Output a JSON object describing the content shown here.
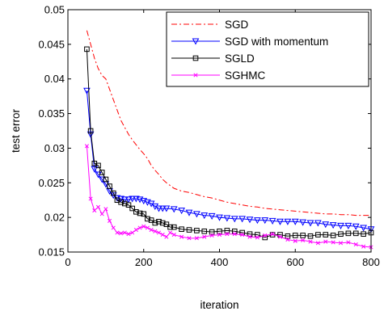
{
  "chart_data": {
    "type": "line",
    "title": "",
    "xlabel": "iteration",
    "ylabel": "test error",
    "xlim": [
      0,
      800
    ],
    "ylim": [
      0.015,
      0.05
    ],
    "xticks": [
      0,
      200,
      400,
      600,
      800
    ],
    "yticks": [
      0.015,
      0.02,
      0.025,
      0.03,
      0.035,
      0.04,
      0.045,
      0.05
    ],
    "xtick_labels": [
      "0",
      "200",
      "400",
      "600",
      "800"
    ],
    "ytick_labels": [
      "0.015",
      "0.02",
      "0.025",
      "0.03",
      "0.035",
      "0.04",
      "0.045",
      "0.05"
    ],
    "grid": false,
    "legend_position": "top-right",
    "series": [
      {
        "name": "SGD",
        "color": "#ff0000",
        "line_style": "dash-dot",
        "marker": "none",
        "x": [
          50,
          60,
          70,
          80,
          90,
          100,
          110,
          120,
          130,
          140,
          150,
          160,
          170,
          180,
          190,
          200,
          210,
          220,
          230,
          240,
          250,
          260,
          270,
          280,
          290,
          300,
          320,
          340,
          360,
          380,
          400,
          420,
          440,
          460,
          480,
          500,
          520,
          540,
          560,
          580,
          600,
          620,
          640,
          660,
          680,
          700,
          720,
          740,
          760,
          780,
          800
        ],
        "y": [
          0.047,
          0.045,
          0.043,
          0.0415,
          0.0405,
          0.04,
          0.0385,
          0.037,
          0.0355,
          0.034,
          0.033,
          0.032,
          0.0312,
          0.0305,
          0.0298,
          0.0292,
          0.0285,
          0.0275,
          0.0268,
          0.0262,
          0.0255,
          0.025,
          0.0246,
          0.0242,
          0.024,
          0.0238,
          0.0236,
          0.0233,
          0.023,
          0.0228,
          0.0225,
          0.0222,
          0.022,
          0.0218,
          0.0216,
          0.0215,
          0.0213,
          0.0212,
          0.0211,
          0.021,
          0.0209,
          0.0208,
          0.0207,
          0.0206,
          0.0205,
          0.0205,
          0.0204,
          0.0204,
          0.0203,
          0.0203,
          0.0203
        ]
      },
      {
        "name": "SGD with momentum",
        "color": "#0000ff",
        "line_style": "solid",
        "marker": "triangle-down",
        "x": [
          50,
          60,
          70,
          80,
          90,
          100,
          110,
          120,
          130,
          140,
          150,
          160,
          170,
          180,
          190,
          200,
          210,
          220,
          230,
          240,
          250,
          260,
          280,
          300,
          320,
          340,
          360,
          380,
          400,
          420,
          440,
          460,
          480,
          500,
          520,
          540,
          560,
          580,
          600,
          620,
          640,
          660,
          680,
          700,
          720,
          740,
          760,
          780,
          800
        ],
        "y": [
          0.0383,
          0.032,
          0.027,
          0.0262,
          0.0255,
          0.0248,
          0.0238,
          0.0232,
          0.0228,
          0.0227,
          0.0226,
          0.0226,
          0.0227,
          0.0227,
          0.0226,
          0.0224,
          0.0222,
          0.022,
          0.0216,
          0.0213,
          0.0213,
          0.0213,
          0.0212,
          0.021,
          0.0207,
          0.0205,
          0.0203,
          0.0202,
          0.02,
          0.0199,
          0.0198,
          0.0198,
          0.0197,
          0.0196,
          0.0196,
          0.0195,
          0.0194,
          0.0194,
          0.0194,
          0.0193,
          0.0192,
          0.0192,
          0.019,
          0.0189,
          0.0188,
          0.0188,
          0.0187,
          0.0185,
          0.0183
        ]
      },
      {
        "name": "SGLD",
        "color": "#000000",
        "line_style": "solid",
        "marker": "square",
        "x": [
          50,
          60,
          70,
          80,
          90,
          100,
          110,
          120,
          130,
          140,
          150,
          160,
          170,
          180,
          190,
          200,
          210,
          220,
          230,
          240,
          250,
          260,
          270,
          280,
          300,
          320,
          340,
          360,
          380,
          400,
          420,
          440,
          460,
          480,
          500,
          520,
          540,
          560,
          580,
          600,
          620,
          640,
          660,
          680,
          700,
          720,
          740,
          760,
          780,
          800
        ],
        "y": [
          0.0443,
          0.0325,
          0.0278,
          0.0275,
          0.0265,
          0.0255,
          0.0245,
          0.0235,
          0.0225,
          0.0222,
          0.022,
          0.0218,
          0.0213,
          0.0208,
          0.0206,
          0.0205,
          0.0198,
          0.0196,
          0.0192,
          0.0194,
          0.0192,
          0.019,
          0.0186,
          0.0186,
          0.0183,
          0.0182,
          0.0181,
          0.018,
          0.0179,
          0.018,
          0.0181,
          0.018,
          0.0178,
          0.0176,
          0.0175,
          0.0171,
          0.0175,
          0.0175,
          0.0173,
          0.0174,
          0.0174,
          0.0173,
          0.0175,
          0.0175,
          0.0174,
          0.0176,
          0.0177,
          0.0177,
          0.0176,
          0.0178
        ]
      },
      {
        "name": "SGHMC",
        "color": "#ff00ff",
        "line_style": "solid",
        "marker": "x",
        "x": [
          50,
          60,
          70,
          80,
          90,
          100,
          110,
          120,
          130,
          140,
          150,
          160,
          170,
          180,
          190,
          200,
          210,
          220,
          230,
          240,
          250,
          260,
          270,
          280,
          300,
          320,
          340,
          360,
          380,
          400,
          420,
          440,
          460,
          480,
          500,
          520,
          540,
          560,
          580,
          600,
          620,
          640,
          660,
          680,
          700,
          720,
          740,
          760,
          780,
          800
        ],
        "y": [
          0.0303,
          0.0227,
          0.021,
          0.0215,
          0.0205,
          0.0212,
          0.0195,
          0.0185,
          0.0178,
          0.0177,
          0.0178,
          0.0176,
          0.0178,
          0.0182,
          0.0185,
          0.0187,
          0.0185,
          0.0182,
          0.018,
          0.0178,
          0.0175,
          0.0172,
          0.0178,
          0.0175,
          0.0172,
          0.017,
          0.017,
          0.0172,
          0.0174,
          0.0175,
          0.0176,
          0.0176,
          0.0175,
          0.0172,
          0.0171,
          0.0174,
          0.0176,
          0.0172,
          0.0168,
          0.0166,
          0.0167,
          0.0165,
          0.0163,
          0.0165,
          0.0164,
          0.0163,
          0.0164,
          0.0161,
          0.0158,
          0.0157
        ]
      }
    ]
  }
}
